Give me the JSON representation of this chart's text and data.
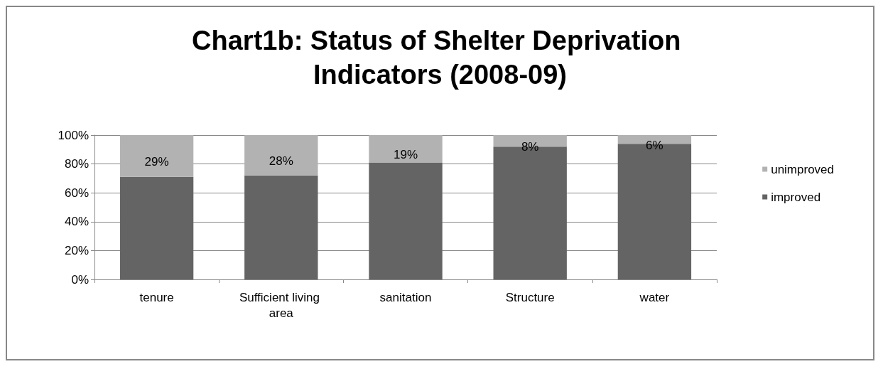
{
  "chart_data": {
    "type": "bar",
    "title": "Chart1b: Status of Shelter Deprivation Indicators (2008-09)",
    "categories": [
      "tenure",
      "Sufficient living area",
      "sanitation",
      "Structure",
      "water"
    ],
    "stacked": true,
    "series": [
      {
        "name": "improved",
        "color": "#646464",
        "values": [
          71,
          72,
          81,
          92,
          94
        ]
      },
      {
        "name": "unimproved",
        "color": "#b2b2b2",
        "values": [
          29,
          28,
          19,
          8,
          6
        ],
        "value_labels": [
          "29%",
          "28%",
          "19%",
          "8%",
          "6%"
        ]
      }
    ],
    "ylim": [
      0,
      100
    ],
    "yticks": [
      {
        "value": 0,
        "label": "0%"
      },
      {
        "value": 20,
        "label": "20%"
      },
      {
        "value": 40,
        "label": "40%"
      },
      {
        "value": 60,
        "label": "60%"
      },
      {
        "value": 80,
        "label": "80%"
      },
      {
        "value": 100,
        "label": "100%"
      }
    ],
    "grid": "y",
    "legend": "right"
  }
}
